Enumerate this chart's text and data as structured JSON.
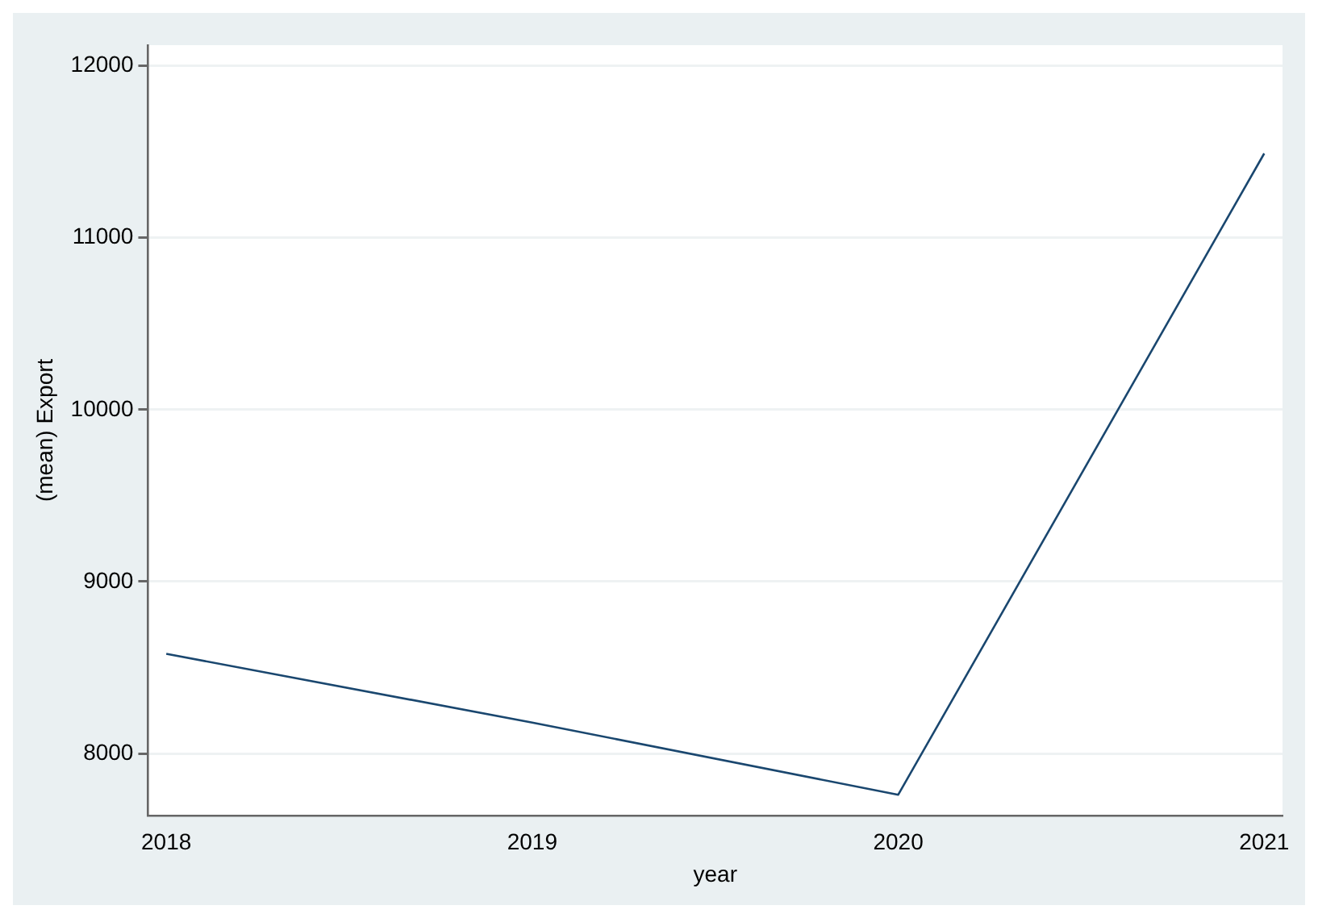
{
  "chart_data": {
    "type": "line",
    "xlabel": "year",
    "ylabel": "(mean) Export",
    "x": [
      2018,
      2019,
      2020,
      2021
    ],
    "series": [
      {
        "color": "#1a476f",
        "values": [
          8580,
          8180,
          7760,
          11490
        ]
      }
    ],
    "xlim": [
      2017.95,
      2021.05
    ],
    "xticks": [
      2018,
      2019,
      2020,
      2021
    ],
    "ylim": [
      7640,
      12120
    ],
    "yticks": [
      8000,
      9000,
      10000,
      11000,
      12000
    ],
    "grid": "y",
    "legend": false,
    "marker": "none",
    "line_style": "solid"
  }
}
